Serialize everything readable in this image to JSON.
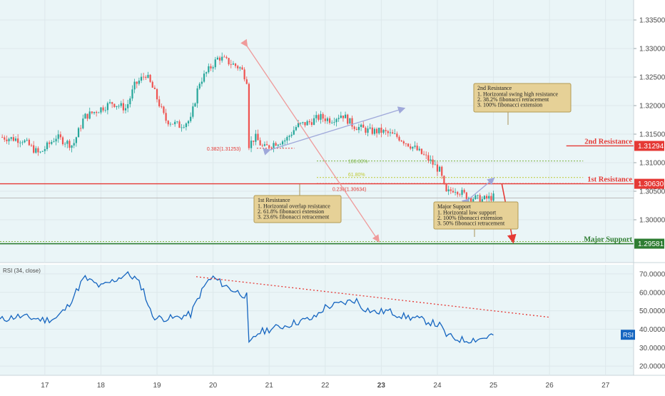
{
  "chart_data": [
    {
      "type": "candlestick",
      "title": "",
      "y_range": [
        1.2925,
        1.3385
      ],
      "y_ticks": [
        "1.33500",
        "1.33000",
        "1.32500",
        "1.32000",
        "1.31500",
        "1.31000",
        "1.30500",
        "1.30000"
      ],
      "y_tick_values": [
        1.335,
        1.33,
        1.325,
        1.32,
        1.315,
        1.31,
        1.305,
        1.3
      ],
      "x_ticks": [
        "17",
        "18",
        "19",
        "20",
        "21",
        "22",
        "23",
        "24",
        "25",
        "26",
        "27"
      ],
      "x_tick_values": [
        1,
        2,
        3,
        4,
        5,
        6,
        7,
        8,
        9,
        10,
        11
      ],
      "x_range": [
        0.2,
        11.5
      ],
      "price_series": {
        "name": "",
        "x": [
          0.2,
          0.6,
          0.9,
          1.2,
          1.5,
          1.7,
          2.0,
          2.2,
          2.45,
          2.6,
          2.8,
          2.95,
          3.15,
          3.4,
          3.6,
          3.75,
          3.9,
          4.1,
          4.3,
          4.5,
          4.6,
          4.63,
          4.75,
          4.9,
          5.1,
          5.3,
          5.5,
          5.7,
          5.9,
          6.1,
          6.3,
          6.5,
          6.65,
          6.8,
          7.0,
          7.3,
          7.6,
          7.85,
          8.05,
          8.15,
          8.3,
          8.55,
          8.8,
          9.0
        ],
        "y": [
          1.3145,
          1.314,
          1.3115,
          1.3145,
          1.313,
          1.318,
          1.3195,
          1.3205,
          1.3195,
          1.3235,
          1.3255,
          1.3225,
          1.3175,
          1.3165,
          1.3175,
          1.324,
          1.326,
          1.3285,
          1.3275,
          1.3265,
          1.3245,
          1.313,
          1.3145,
          1.3125,
          1.3135,
          1.314,
          1.3165,
          1.317,
          1.318,
          1.3175,
          1.3185,
          1.3165,
          1.316,
          1.3155,
          1.3155,
          1.3145,
          1.3125,
          1.3105,
          1.3085,
          1.3045,
          1.3055,
          1.304,
          1.3035,
          1.304
        ]
      },
      "current_price_line": 1.3038,
      "horizontal_levels": [
        {
          "label": "2nd Resistance",
          "value": 1.31294,
          "value_label": "1.31294",
          "color": "#e53935"
        },
        {
          "label": "1st Resistance",
          "value": 1.3063,
          "value_label": "1.30630",
          "color": "#e53935"
        },
        {
          "label": "Major Support",
          "value": 1.29581,
          "value_label": "1.29581",
          "color": "#2e7d32"
        }
      ],
      "fib_levels": [
        {
          "label": "0.382(1.31253)",
          "value": 1.31253,
          "color": "#e53935"
        },
        {
          "label": "100.00%",
          "value": 1.3103,
          "color": "#7cb342"
        },
        {
          "label": "61.80%",
          "value": 1.3074,
          "color": "#c0ca33"
        },
        {
          "label": "0.236(1.30634)",
          "value": 1.30634,
          "color": "#e53935"
        }
      ],
      "annotations": [
        {
          "title": "2nd Resistance",
          "lines": [
            "1. Horizontal swing high resistance",
            "2. 38.2% fibonacci retracement",
            "3. 100% fibonacci extension"
          ]
        },
        {
          "title": "1st Resistance",
          "lines": [
            "1. Horizontal overlap resistance",
            "2. 61.8% fibonacci extension",
            "3. 23.6% fibonacci retracement"
          ]
        },
        {
          "title": "Major Support",
          "lines": [
            "1. Horizontal low support",
            "2. 100% fibonacci extension",
            "3. 50% fibonacci retracement"
          ]
        }
      ],
      "colors": {
        "up": "#26a69a",
        "down": "#ef5350",
        "bg": "#eaf5f7"
      }
    },
    {
      "type": "line",
      "title": "RSI (34, close)",
      "y_range": [
        15,
        75
      ],
      "y_ticks": [
        "70.0000",
        "60.0000",
        "50.0000",
        "40.0000",
        "30.0000",
        "20.0000"
      ],
      "y_tick_values": [
        70,
        60,
        50,
        40,
        30,
        20
      ],
      "current_value_label": "RSI",
      "series": [
        {
          "name": "",
          "color": "#1565c0",
          "x": [
            0.2,
            0.5,
            0.8,
            1.0,
            1.2,
            1.4,
            1.55,
            1.7,
            2.0,
            2.2,
            2.45,
            2.6,
            2.75,
            2.9,
            3.0,
            3.3,
            3.6,
            3.75,
            3.9,
            4.0,
            4.3,
            4.6,
            4.63,
            4.8,
            5.0,
            5.3,
            5.5,
            5.8,
            6.0,
            6.3,
            6.55,
            6.65,
            6.9,
            7.1,
            7.4,
            7.6,
            7.85,
            8.05,
            8.15,
            8.3,
            8.5,
            8.8,
            9.0
          ],
          "y": [
            45,
            47,
            46,
            45,
            46,
            52,
            60,
            68,
            63,
            66,
            70,
            68,
            62,
            48,
            46,
            46,
            48,
            58,
            66,
            68,
            62,
            58,
            31,
            38,
            40,
            42,
            44,
            46,
            52,
            54,
            56,
            52,
            49,
            50,
            47,
            46,
            44,
            42,
            37,
            35,
            34,
            35,
            37
          ]
        }
      ],
      "trendline_label": "",
      "colors": {
        "bg": "#eaf5f7"
      }
    }
  ]
}
